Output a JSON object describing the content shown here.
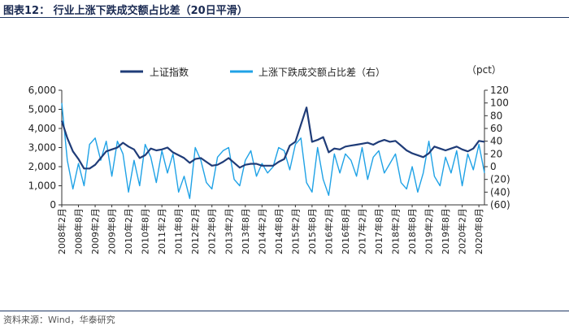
{
  "header": {
    "figure_title": "图表12：  行业上涨下跌成交额占比差（20日平滑）"
  },
  "footer": {
    "source": "资料来源：Wind，华泰研究"
  },
  "colors": {
    "index_line": "#1f3c78",
    "spread_line": "#1fa2e6",
    "rule": "#1f3864"
  },
  "chart_data": {
    "type": "line",
    "title": "",
    "right_axis_unit": "（pct）",
    "left_axis": {
      "ylim": [
        0,
        6000
      ],
      "ticks": [
        "0",
        "1,000",
        "2,000",
        "3,000",
        "4,000",
        "5,000",
        "6,000"
      ]
    },
    "right_axis": {
      "ylim": [
        -60,
        120
      ],
      "ticks": [
        "(60)",
        "(40)",
        "(20)",
        "0",
        "20",
        "40",
        "60",
        "80",
        "100",
        "120"
      ]
    },
    "x_ticks": [
      "2008年2月",
      "2008年8月",
      "2009年2月",
      "2009年8月",
      "2010年2月",
      "2010年8月",
      "2011年2月",
      "2011年8月",
      "2012年2月",
      "2012年8月",
      "2013年2月",
      "2013年8月",
      "2014年2月",
      "2014年8月",
      "2015年2月",
      "2015年8月",
      "2016年2月",
      "2016年8月",
      "2017年2月",
      "2017年8月",
      "2018年2月",
      "2018年8月",
      "2019年2月",
      "2019年8月",
      "2020年2月",
      "2020年8月"
    ],
    "legend_position": "top",
    "series": [
      {
        "name": "上证指数",
        "axis": "left",
        "x": [
          "2008-02",
          "2008-04",
          "2008-06",
          "2008-08",
          "2008-10",
          "2008-12",
          "2009-02",
          "2009-04",
          "2009-06",
          "2009-08",
          "2009-10",
          "2009-12",
          "2010-02",
          "2010-04",
          "2010-06",
          "2010-08",
          "2010-10",
          "2010-12",
          "2011-02",
          "2011-04",
          "2011-06",
          "2011-08",
          "2011-10",
          "2011-12",
          "2012-02",
          "2012-04",
          "2012-06",
          "2012-08",
          "2012-10",
          "2012-12",
          "2013-02",
          "2013-04",
          "2013-06",
          "2013-08",
          "2013-10",
          "2013-12",
          "2014-02",
          "2014-04",
          "2014-06",
          "2014-08",
          "2014-10",
          "2014-12",
          "2015-02",
          "2015-04",
          "2015-06",
          "2015-08",
          "2015-10",
          "2015-12",
          "2016-02",
          "2016-04",
          "2016-06",
          "2016-08",
          "2016-10",
          "2016-12",
          "2017-02",
          "2017-04",
          "2017-06",
          "2017-08",
          "2017-10",
          "2017-12",
          "2018-02",
          "2018-04",
          "2018-06",
          "2018-08",
          "2018-10",
          "2018-12",
          "2019-02",
          "2019-04",
          "2019-06",
          "2019-08",
          "2019-10",
          "2019-12",
          "2020-02",
          "2020-04",
          "2020-06",
          "2020-08",
          "2020-10"
        ],
        "values": [
          4400,
          3500,
          2800,
          2400,
          1900,
          1900,
          2100,
          2450,
          2800,
          2900,
          3000,
          3250,
          3050,
          2900,
          2450,
          2600,
          2950,
          2850,
          2900,
          3000,
          2750,
          2600,
          2450,
          2200,
          2400,
          2450,
          2250,
          2050,
          2100,
          2250,
          2450,
          2200,
          1950,
          2100,
          2150,
          2150,
          2050,
          2050,
          2050,
          2250,
          2400,
          3100,
          3300,
          4200,
          5100,
          3300,
          3400,
          3550,
          2750,
          2950,
          2900,
          3050,
          3100,
          3150,
          3200,
          3250,
          3150,
          3300,
          3400,
          3300,
          3350,
          3100,
          2850,
          2700,
          2600,
          2500,
          2700,
          3050,
          2950,
          2850,
          2950,
          3050,
          2900,
          2800,
          2950,
          3350,
          3300
        ]
      },
      {
        "name": "上涨下跌成交额占比差（右）",
        "axis": "right",
        "x": [
          "2008-02",
          "2008-04",
          "2008-06",
          "2008-08",
          "2008-10",
          "2008-12",
          "2009-02",
          "2009-04",
          "2009-06",
          "2009-08",
          "2009-10",
          "2009-12",
          "2010-02",
          "2010-04",
          "2010-06",
          "2010-08",
          "2010-10",
          "2010-12",
          "2011-02",
          "2011-04",
          "2011-06",
          "2011-08",
          "2011-10",
          "2011-12",
          "2012-02",
          "2012-04",
          "2012-06",
          "2012-08",
          "2012-10",
          "2012-12",
          "2013-02",
          "2013-04",
          "2013-06",
          "2013-08",
          "2013-10",
          "2013-12",
          "2014-02",
          "2014-04",
          "2014-06",
          "2014-08",
          "2014-10",
          "2014-12",
          "2015-02",
          "2015-04",
          "2015-06",
          "2015-08",
          "2015-10",
          "2015-12",
          "2016-02",
          "2016-04",
          "2016-06",
          "2016-08",
          "2016-10",
          "2016-12",
          "2017-02",
          "2017-04",
          "2017-06",
          "2017-08",
          "2017-10",
          "2017-12",
          "2018-02",
          "2018-04",
          "2018-06",
          "2018-08",
          "2018-10",
          "2018-12",
          "2019-02",
          "2019-04",
          "2019-06",
          "2019-08",
          "2019-10",
          "2019-12",
          "2020-02",
          "2020-04",
          "2020-06",
          "2020-08",
          "2020-10"
        ],
        "values": [
          100,
          10,
          -35,
          5,
          -30,
          35,
          45,
          10,
          40,
          -15,
          40,
          20,
          -40,
          10,
          -30,
          35,
          15,
          -25,
          25,
          -10,
          20,
          -40,
          -15,
          -50,
          30,
          10,
          -25,
          -35,
          15,
          25,
          30,
          -20,
          -30,
          10,
          25,
          -15,
          5,
          -10,
          0,
          30,
          25,
          -5,
          35,
          45,
          -25,
          -40,
          30,
          -20,
          -45,
          20,
          -10,
          20,
          10,
          -15,
          30,
          -20,
          15,
          25,
          -10,
          5,
          20,
          -25,
          -35,
          0,
          -40,
          -10,
          40,
          -15,
          -30,
          15,
          -10,
          25,
          -30,
          20,
          -5,
          35,
          -10
        ]
      }
    ]
  }
}
